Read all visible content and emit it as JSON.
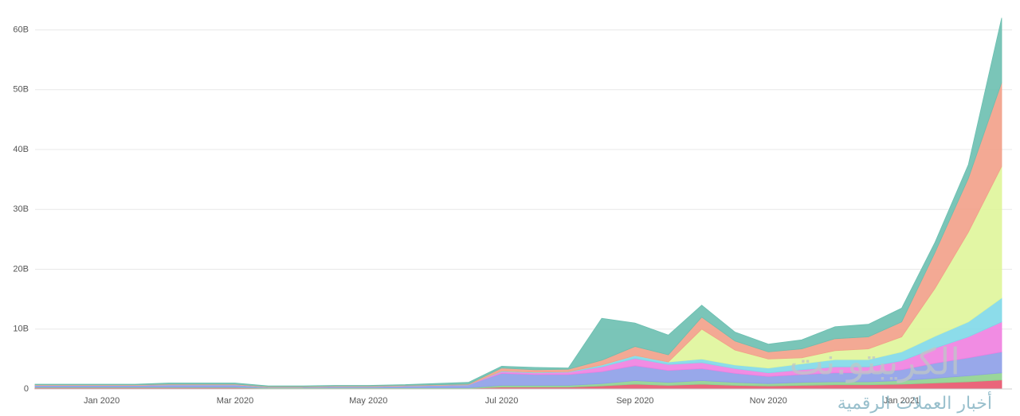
{
  "chart_data": {
    "type": "stacked-area",
    "categories": [
      null,
      null,
      "Jan 2020",
      null,
      null,
      null,
      "Mar 2020",
      null,
      null,
      null,
      "May 2020",
      null,
      null,
      null,
      "Jul 2020",
      null,
      null,
      null,
      "Sep 2020",
      null,
      null,
      null,
      "Nov 2020",
      null,
      null,
      null,
      "Jan 2021",
      null,
      null,
      null
    ],
    "series": [
      {
        "color": "#e8546b",
        "values": [
          0.2,
          0.2,
          0.2,
          0.2,
          0.2,
          0.2,
          0.2,
          0.1,
          0.1,
          0.1,
          0.1,
          0.1,
          0.1,
          0.1,
          0.3,
          0.3,
          0.3,
          0.5,
          0.8,
          0.6,
          0.8,
          0.6,
          0.5,
          0.6,
          0.7,
          0.7,
          0.8,
          1.0,
          1.2,
          1.5
        ]
      },
      {
        "color": "#8fd18f",
        "values": [
          0.1,
          0.1,
          0.1,
          0.1,
          0.1,
          0.1,
          0.1,
          0.1,
          0.1,
          0.1,
          0.1,
          0.1,
          0.1,
          0.1,
          0.3,
          0.3,
          0.3,
          0.4,
          0.6,
          0.5,
          0.6,
          0.5,
          0.4,
          0.5,
          0.5,
          0.5,
          0.6,
          0.8,
          1.0,
          1.2
        ]
      },
      {
        "color": "#8d9ee8",
        "values": [
          0.3,
          0.3,
          0.3,
          0.3,
          0.4,
          0.4,
          0.4,
          0.1,
          0.1,
          0.2,
          0.2,
          0.3,
          0.4,
          0.5,
          2.0,
          1.8,
          1.8,
          2.0,
          2.5,
          2.0,
          2.0,
          1.5,
          1.2,
          1.3,
          1.5,
          1.5,
          1.8,
          2.5,
          3.0,
          3.5
        ]
      },
      {
        "color": "#f07fe0",
        "values": [
          0,
          0,
          0,
          0,
          0,
          0,
          0,
          0,
          0,
          0,
          0,
          0,
          0,
          0,
          0.3,
          0.3,
          0.4,
          0.8,
          1.2,
          1.0,
          1.0,
          0.8,
          0.6,
          0.8,
          1.0,
          1.0,
          1.5,
          2.5,
          3.5,
          5.0
        ]
      },
      {
        "color": "#7fd8e8",
        "values": [
          0,
          0,
          0,
          0,
          0,
          0,
          0,
          0,
          0,
          0,
          0,
          0,
          0,
          0,
          0.1,
          0.1,
          0.1,
          0.3,
          0.5,
          0.4,
          0.6,
          0.6,
          0.8,
          1.0,
          1.2,
          1.2,
          1.5,
          2.0,
          2.5,
          4.0
        ]
      },
      {
        "color": "#dff59a",
        "values": [
          0,
          0,
          0,
          0,
          0,
          0,
          0,
          0,
          0,
          0,
          0,
          0,
          0,
          0,
          0,
          0,
          0,
          0,
          0,
          0,
          5.0,
          2.5,
          1.5,
          1.0,
          1.5,
          1.8,
          2.5,
          8.0,
          15.0,
          22.0
        ]
      },
      {
        "color": "#f2a088",
        "values": [
          0.1,
          0.1,
          0.1,
          0.1,
          0.1,
          0.1,
          0.1,
          0.1,
          0.1,
          0.1,
          0.1,
          0.1,
          0.1,
          0.1,
          0.5,
          0.4,
          0.4,
          0.8,
          1.5,
          1.2,
          2.0,
          1.5,
          1.2,
          1.5,
          2.0,
          2.0,
          2.5,
          6.0,
          9.0,
          14.0
        ]
      },
      {
        "color": "#6bbfb0",
        "values": [
          0.1,
          0.1,
          0.1,
          0.1,
          0.2,
          0.2,
          0.2,
          0.1,
          0.1,
          0.1,
          0.1,
          0.1,
          0.2,
          0.3,
          0.3,
          0.4,
          0.2,
          7.0,
          3.9,
          3.3,
          2.0,
          1.5,
          1.3,
          1.5,
          2.0,
          2.1,
          2.3,
          1.7,
          2.3,
          10.8
        ]
      }
    ],
    "ylim": [
      0,
      63
    ],
    "yticks": [
      0,
      {
        "value": 10,
        "label": "10B"
      },
      {
        "value": 20,
        "label": "20B"
      },
      {
        "value": 30,
        "label": "30B"
      },
      {
        "value": 40,
        "label": "40B"
      },
      {
        "value": 50,
        "label": "50B"
      },
      {
        "value": 60,
        "label": "60B"
      }
    ],
    "grid": true,
    "watermark": {
      "logo": "الكريبتو.نت",
      "tagline": "أخبار العملات الرقمية"
    }
  }
}
